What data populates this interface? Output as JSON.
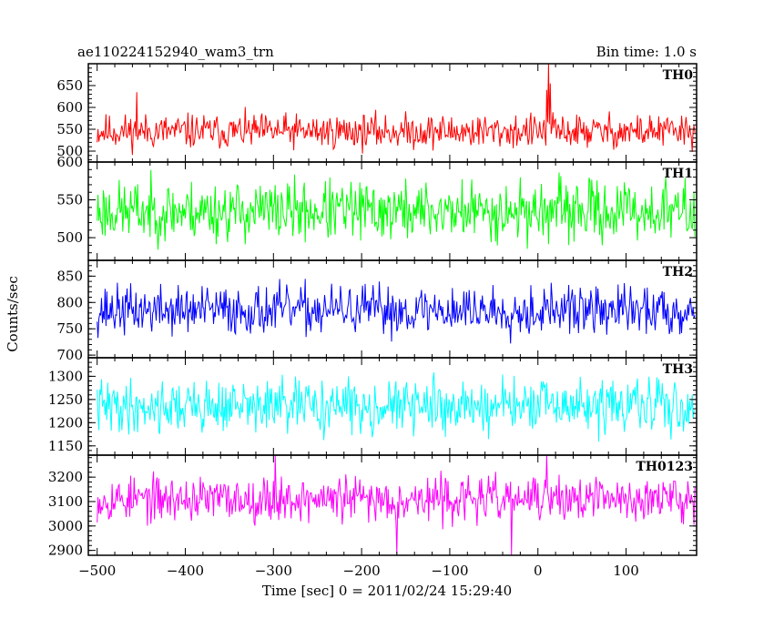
{
  "chart_data": {
    "type": "line",
    "title_left": "ae110224152940_wam3_trn",
    "title_right": "Bin time: 1.0 s",
    "xlabel": "Time [sec] 0 = 2011/02/24 15:29:40",
    "ylabel": "Counts/sec",
    "xlim": [
      -510,
      180
    ],
    "x_range_data": [
      -500,
      178
    ],
    "x_ticks": [
      -500,
      -400,
      -300,
      -200,
      -100,
      0,
      100
    ],
    "x_tick_labels": [
      "−500",
      "−400",
      "−300",
      "−200",
      "−100",
      "0",
      "100"
    ],
    "series": [
      {
        "name": "TH0",
        "color": "#ff0000",
        "ylim": [
          475,
          700
        ],
        "y_ticks": [
          500,
          550,
          600,
          650
        ],
        "mean": 545,
        "noise": 28,
        "seed": 11,
        "spikes": [
          [
            12,
            700
          ],
          [
            10,
            640
          ],
          [
            14,
            655
          ],
          [
            -455,
            635
          ]
        ]
      },
      {
        "name": "TH1",
        "color": "#00ff00",
        "ylim": [
          470,
          600
        ],
        "y_ticks": [
          500,
          550,
          600
        ],
        "mean": 535,
        "noise": 28,
        "seed": 23,
        "spikes": []
      },
      {
        "name": "TH2",
        "color": "#0000ff",
        "ylim": [
          695,
          880
        ],
        "y_ticks": [
          700,
          750,
          800,
          850
        ],
        "mean": 785,
        "noise": 33,
        "seed": 37,
        "spikes": []
      },
      {
        "name": "TH3",
        "color": "#00ffff",
        "ylim": [
          1130,
          1340
        ],
        "y_ticks": [
          1150,
          1200,
          1250,
          1300
        ],
        "mean": 1235,
        "noise": 40,
        "seed": 41,
        "spikes": []
      },
      {
        "name": "TH0123",
        "color": "#ff00ff",
        "ylim": [
          2880,
          3290
        ],
        "y_ticks": [
          2900,
          3000,
          3100,
          3200
        ],
        "mean": 3110,
        "noise": 65,
        "seed": 53,
        "spikes": [
          [
            -30,
            2880
          ],
          [
            -160,
            2885
          ],
          [
            10,
            3290
          ],
          [
            -298,
            3290
          ]
        ]
      }
    ]
  }
}
